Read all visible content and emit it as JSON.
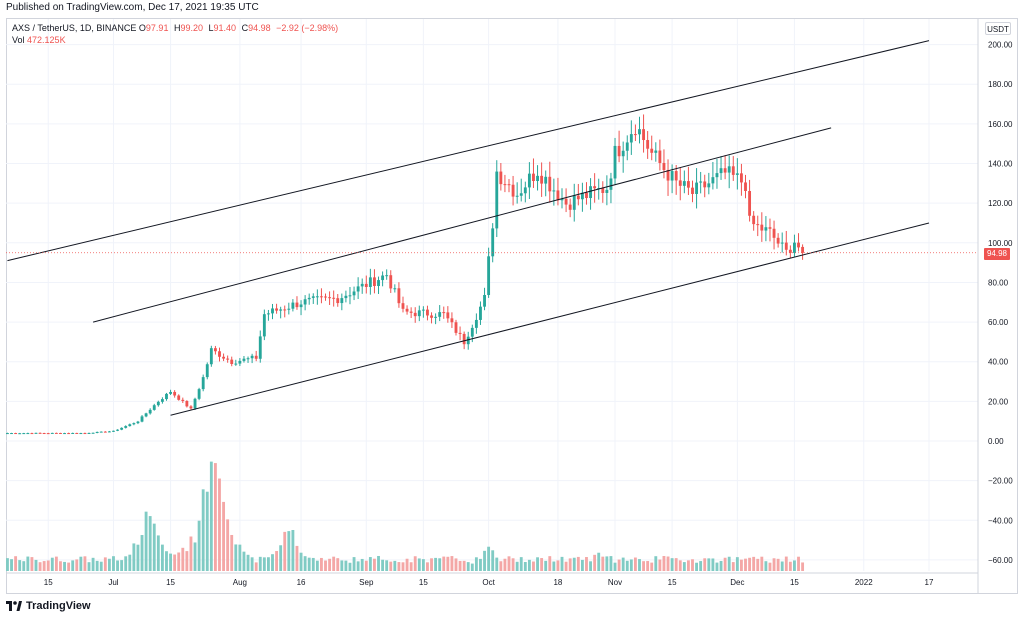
{
  "header": {
    "published": "Published on TradingView.com, Dec 17, 2021 19:35 UTC"
  },
  "legend": {
    "symbol": "AXS / TetherUS, 1D, BINANCE",
    "o_label": "O",
    "o_value": "97.91",
    "h_label": "H",
    "h_value": "99.20",
    "l_label": "L",
    "l_value": "91.40",
    "c_label": "C",
    "c_value": "94.98",
    "change": "−2.92 (−2.98%)",
    "vol_label": "Vol",
    "vol_value": "472.125K"
  },
  "currency_label": "USDT",
  "last_price_label": "94.98",
  "footer": {
    "brand": "TradingView"
  },
  "colors": {
    "up": "#26a69a",
    "down": "#ef5350",
    "vol_up": "#80cbc4",
    "vol_down": "#f4a7a6",
    "grid": "#f0f3fa",
    "trendline": "#131722"
  },
  "chart_data": {
    "type": "candlestick",
    "symbol": "AXS / TetherUS",
    "interval": "1D",
    "exchange": "BINANCE",
    "ylim": [
      -65,
      210
    ],
    "y_ticks": [
      -60,
      -40,
      -20,
      0,
      20,
      40,
      60,
      80,
      100,
      120,
      140,
      160,
      180,
      200
    ],
    "y_tick_labels": [
      "−60.00",
      "−40.00",
      "−20.00",
      "0.00",
      "20.00",
      "40.00",
      "60.00",
      "80.00",
      "100.00",
      "120.00",
      "140.00",
      "160.00",
      "180.00",
      "200.00"
    ],
    "x_ticks": [
      {
        "label": "15",
        "date": "2021-06-15"
      },
      {
        "label": "Jul",
        "date": "2021-07-01"
      },
      {
        "label": "15",
        "date": "2021-07-15"
      },
      {
        "label": "Aug",
        "date": "2021-08-01"
      },
      {
        "label": "16",
        "date": "2021-08-16"
      },
      {
        "label": "Sep",
        "date": "2021-09-01"
      },
      {
        "label": "15",
        "date": "2021-09-15"
      },
      {
        "label": "Oct",
        "date": "2021-10-01"
      },
      {
        "label": "18",
        "date": "2021-10-18"
      },
      {
        "label": "Nov",
        "date": "2021-11-01"
      },
      {
        "label": "15",
        "date": "2021-11-15"
      },
      {
        "label": "Dec",
        "date": "2021-12-01"
      },
      {
        "label": "15",
        "date": "2021-12-15"
      },
      {
        "label": "2022",
        "date": "2022-01-01"
      },
      {
        "label": "17",
        "date": "2022-01-17"
      }
    ],
    "first_date": "2021-06-05",
    "last_date": "2021-12-17",
    "close_anchors": [
      {
        "date": "2021-06-05",
        "close": 4
      },
      {
        "date": "2021-06-24",
        "close": 4
      },
      {
        "date": "2021-07-01",
        "close": 5
      },
      {
        "date": "2021-07-07",
        "close": 10
      },
      {
        "date": "2021-07-12",
        "close": 20
      },
      {
        "date": "2021-07-15",
        "close": 25
      },
      {
        "date": "2021-07-20",
        "close": 16
      },
      {
        "date": "2021-07-23",
        "close": 32
      },
      {
        "date": "2021-07-25",
        "close": 46
      },
      {
        "date": "2021-07-30",
        "close": 40
      },
      {
        "date": "2021-08-05",
        "close": 42
      },
      {
        "date": "2021-08-07",
        "close": 64
      },
      {
        "date": "2021-08-16",
        "close": 70
      },
      {
        "date": "2021-08-25",
        "close": 72
      },
      {
        "date": "2021-09-06",
        "close": 84
      },
      {
        "date": "2021-09-10",
        "close": 65
      },
      {
        "date": "2021-09-20",
        "close": 64
      },
      {
        "date": "2021-09-25",
        "close": 50
      },
      {
        "date": "2021-09-30",
        "close": 72
      },
      {
        "date": "2021-10-02",
        "close": 110
      },
      {
        "date": "2021-10-03",
        "close": 136
      },
      {
        "date": "2021-10-08",
        "close": 125
      },
      {
        "date": "2021-10-13",
        "close": 137
      },
      {
        "date": "2021-10-20",
        "close": 120
      },
      {
        "date": "2021-10-30",
        "close": 128
      },
      {
        "date": "2021-11-01",
        "close": 145
      },
      {
        "date": "2021-11-06",
        "close": 160
      },
      {
        "date": "2021-11-10",
        "close": 145
      },
      {
        "date": "2021-11-16",
        "close": 130
      },
      {
        "date": "2021-11-20",
        "close": 125
      },
      {
        "date": "2021-11-28",
        "close": 135
      },
      {
        "date": "2021-12-03",
        "close": 130
      },
      {
        "date": "2021-12-04",
        "close": 110
      },
      {
        "date": "2021-12-09",
        "close": 105
      },
      {
        "date": "2021-12-13",
        "close": 95
      },
      {
        "date": "2021-12-15",
        "close": 101
      },
      {
        "date": "2021-12-16",
        "close": 97.91
      },
      {
        "date": "2021-12-17",
        "close": 94.98
      }
    ],
    "volume_peaks": [
      {
        "date": "2021-07-10",
        "volume": 0.56,
        "direction": "up"
      },
      {
        "date": "2021-07-25",
        "volume": 1.0,
        "direction": "up"
      },
      {
        "date": "2021-07-26",
        "volume": 0.94,
        "direction": "down"
      },
      {
        "date": "2021-08-13",
        "volume": 0.4,
        "direction": "up"
      },
      {
        "date": "2021-10-01",
        "volume": 0.2,
        "direction": "up"
      },
      {
        "date": "2021-10-28",
        "volume": 0.16,
        "direction": "up"
      },
      {
        "date": "2021-12-04",
        "volume": 0.12,
        "direction": "down"
      }
    ],
    "last_bar": {
      "date": "2021-12-17",
      "open": 97.91,
      "high": 99.2,
      "low": 91.4,
      "close": 94.98,
      "volume": "472.125K"
    },
    "current_price": 94.98,
    "trendlines": [
      {
        "from": {
          "date": "2021-06-05",
          "price": 91
        },
        "to": {
          "date": "2022-01-17",
          "price": 202
        }
      },
      {
        "from": {
          "date": "2021-06-26",
          "price": 60
        },
        "to": {
          "date": "2021-12-24",
          "price": 158
        }
      },
      {
        "from": {
          "date": "2021-07-15",
          "price": 13
        },
        "to": {
          "date": "2022-01-17",
          "price": 110
        }
      }
    ],
    "grid": true,
    "legend_position": "top-left"
  }
}
